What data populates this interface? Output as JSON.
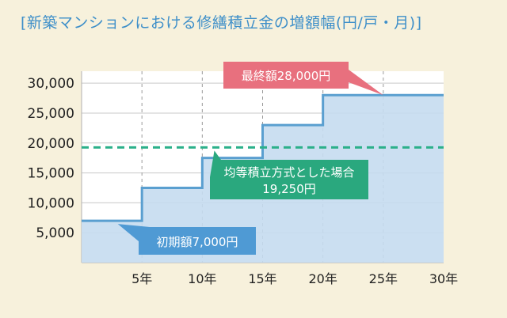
{
  "title": "[新築マンションにおける修繕積立金の増額幅(円/戸・月)]",
  "colors": {
    "background": "#f7f1dc",
    "title": "#3e8fc9",
    "step_line": "#5a9fd0",
    "step_fill": "#c5dcf0",
    "average_line": "#2bb08a",
    "callout_final": "#e8707e",
    "callout_average": "#2aa87e",
    "callout_initial": "#4f9ad4"
  },
  "chart_data": {
    "type": "area",
    "step": true,
    "x": [
      0,
      5,
      10,
      15,
      20,
      25,
      30
    ],
    "series": [
      {
        "segments": [
          {
            "x_start": 0,
            "x_end": 5,
            "value": 7000
          },
          {
            "x_start": 5,
            "x_end": 10,
            "value": 12500
          },
          {
            "x_start": 10,
            "x_end": 15,
            "value": 17500
          },
          {
            "x_start": 15,
            "x_end": 20,
            "value": 23000
          },
          {
            "x_start": 20,
            "x_end": 30,
            "value": 28000
          }
        ]
      }
    ],
    "reference_line": {
      "value": 19250,
      "style": "dashed"
    },
    "xlim": [
      0,
      30
    ],
    "ylim": [
      0,
      32000
    ],
    "yticks": [
      5000,
      10000,
      15000,
      20000,
      25000,
      30000
    ],
    "ytick_labels": [
      "5,000",
      "10,000",
      "15,000",
      "20,000",
      "25,000",
      "30,000"
    ],
    "xticks": [
      5,
      10,
      15,
      20,
      25,
      30
    ],
    "xtick_labels": [
      "5年",
      "10年",
      "15年",
      "20年",
      "25年",
      "30年"
    ],
    "grid": {
      "horizontal": true,
      "vertical": "dashed"
    },
    "annotations": {
      "final": {
        "text": "最終額28,000円",
        "x": 25,
        "y": 28000
      },
      "average": {
        "line1": "均等積立方式とした場合",
        "line2": "19,250円",
        "x": 11,
        "y": 19250
      },
      "initial": {
        "text": "初期額7,000円",
        "x": 3,
        "y": 7000
      }
    }
  }
}
